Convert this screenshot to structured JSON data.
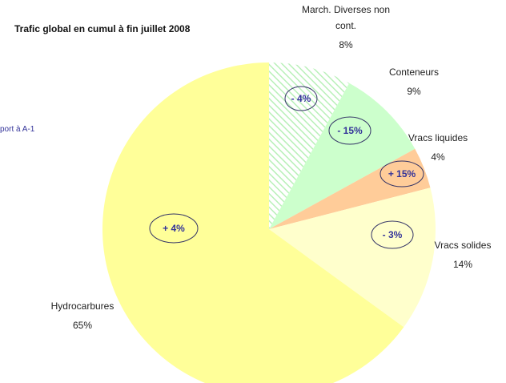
{
  "chart_data": {
    "type": "pie",
    "title": "Trafic global en cumul à fin juillet 2008",
    "note": "port à A-1",
    "categories": [
      "March. Diverses non cont.",
      "Conteneurs",
      "Vracs liquides",
      "Vracs solides",
      "Hydrocarbures"
    ],
    "values": [
      8,
      9,
      4,
      14,
      65
    ],
    "value_labels": [
      "8%",
      "9%",
      "4%",
      "14%",
      "65%"
    ],
    "colors": [
      "hatch-green",
      "#ccffcc",
      "#ffcc99",
      "#ffffcc",
      "#ffff99"
    ],
    "changes": [
      "- 4%",
      "- 15%",
      "+ 15%",
      "- 3%",
      "+ 4%"
    ]
  }
}
